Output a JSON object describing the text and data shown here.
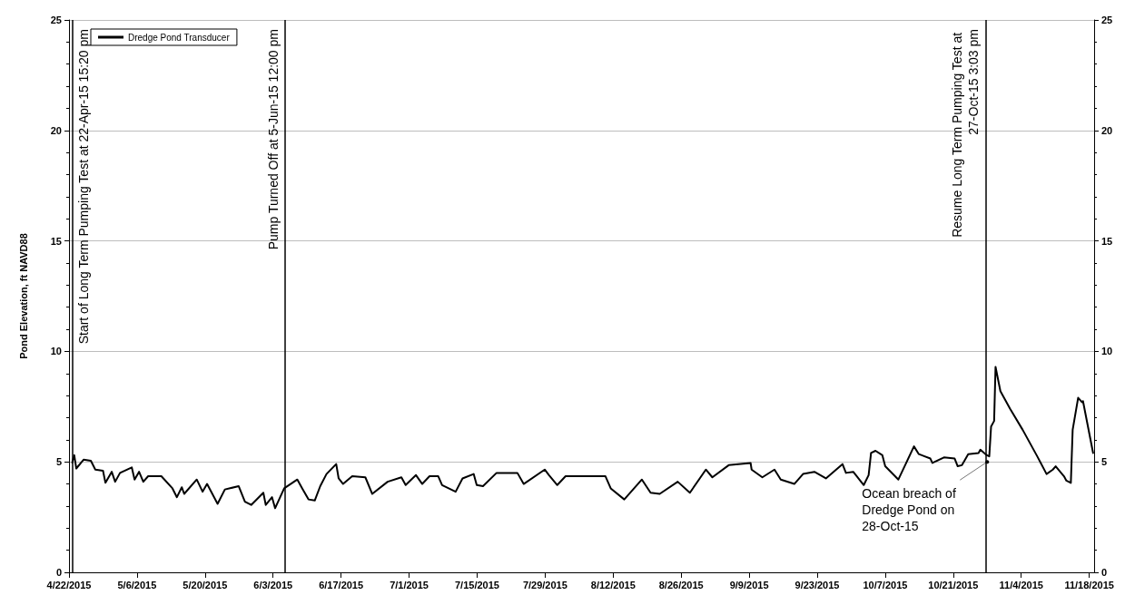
{
  "chart_data": {
    "type": "line",
    "ylabel": "Pond Elevation, ft NAVD88",
    "x": [
      "2015-04-22T16:00",
      "2015-04-23T02:00",
      "2015-04-23T12:00",
      "2015-04-25T00:00",
      "2015-04-26T12:00",
      "2015-04-27T10:00",
      "2015-04-29T00:00",
      "2015-04-29T12:00",
      "2015-04-30T19:00",
      "2015-05-01T12:00",
      "2015-05-02T12:00",
      "2015-05-04T22:00",
      "2015-05-05T12:00",
      "2015-05-06T10:00",
      "2015-05-07T07:00",
      "2015-05-08T07:00",
      "2015-05-11T00:00",
      "2015-05-13T07:00",
      "2015-05-14T05:00",
      "2015-05-15T05:00",
      "2015-05-15T17:00",
      "2015-05-18T07:00",
      "2015-05-19T12:00",
      "2015-05-20T10:00",
      "2015-05-22T14:00",
      "2015-05-24T02:00",
      "2015-05-26T22:00",
      "2015-05-28T05:00",
      "2015-05-29T12:00",
      "2015-06-01T00:00",
      "2015-06-01T12:00",
      "2015-06-02T19:00",
      "2015-06-03T10:00",
      "2015-06-05T07:00",
      "2015-06-08T00:00",
      "2015-06-09T00:00",
      "2015-06-10T07:00",
      "2015-06-11T14:00",
      "2015-06-12T17:00",
      "2015-06-14T00:00",
      "2015-06-16T00:00",
      "2015-06-16T12:00",
      "2015-06-17T10:00",
      "2015-06-19T07:00",
      "2015-06-22T00:00",
      "2015-06-23T10:00",
      "2015-06-26T14:00",
      "2015-06-29T10:00",
      "2015-06-30T07:00",
      "2015-07-02T10:00",
      "2015-07-03T17:00",
      "2015-07-05T05:00",
      "2015-07-07T00:00",
      "2015-07-07T19:00",
      "2015-07-10T14:00",
      "2015-07-12T00:00",
      "2015-07-14T07:00",
      "2015-07-14T22:00",
      "2015-07-16T05:00",
      "2015-07-19T00:00",
      "2015-07-23T07:00",
      "2015-07-24T14:00",
      "2015-07-28T22:00",
      "2015-07-29T19:00",
      "2015-07-31T12:00",
      "2015-08-02T05:00",
      "2015-08-10T10:00",
      "2015-08-11T12:00",
      "2015-08-14T07:00",
      "2015-08-17T22:00",
      "2015-08-19T17:00",
      "2015-08-21T14:00",
      "2015-08-25T07:00",
      "2015-08-27T19:00",
      "2015-08-31T02:00",
      "2015-09-01T10:00",
      "2015-09-04T19:00",
      "2015-09-09T07:00",
      "2015-09-09T12:00",
      "2015-09-11T17:00",
      "2015-09-14T05:00",
      "2015-09-15T12:00",
      "2015-09-18T07:00",
      "2015-09-20T02:00",
      "2015-09-22T10:00",
      "2015-09-24T19:00",
      "2015-09-28T05:00",
      "2015-09-28T22:00",
      "2015-09-30T10:00",
      "2015-10-02T14:00",
      "2015-10-03T14:00",
      "2015-10-04T02:00",
      "2015-10-05T00:00",
      "2015-10-06T10:00",
      "2015-10-07T00:00",
      "2015-10-08T19:00",
      "2015-10-09T17:00",
      "2015-10-11T05:00",
      "2015-10-12T22:00",
      "2015-10-13T22:00",
      "2015-10-16T07:00",
      "2015-10-16T17:00",
      "2015-10-19T02:00",
      "2015-10-21T07:00",
      "2015-10-21T22:00",
      "2015-10-22T19:00",
      "2015-10-24T02:00",
      "2015-10-26T05:00",
      "2015-10-26T14:00",
      "2015-10-27T22:00",
      "2015-10-28T10:00",
      "2015-10-28T19:00",
      "2015-10-29T10:00",
      "2015-10-29T17:00",
      "2015-10-30T17:00",
      "2015-11-01T17:00",
      "2015-11-04T07:00",
      "2015-11-07T07:00",
      "2015-11-09T05:00",
      "2015-11-10T12:00",
      "2015-11-11T02:00",
      "2015-11-12T19:00",
      "2015-11-13T07:00",
      "2015-11-14T05:00",
      "2015-11-14T14:00",
      "2015-11-15T17:00",
      "2015-11-16T12:00",
      "2015-11-16T17:00",
      "2015-11-18T19:00"
    ],
    "series": [
      {
        "name": "Dredge Pond Transducer",
        "color": "#000000",
        "values": [
          4.97,
          5.3,
          4.7,
          5.1,
          5.05,
          4.65,
          4.6,
          4.05,
          4.55,
          4.1,
          4.5,
          4.75,
          4.2,
          4.55,
          4.1,
          4.35,
          4.35,
          3.8,
          3.4,
          3.85,
          3.55,
          4.2,
          3.65,
          4.0,
          3.1,
          3.75,
          3.9,
          3.2,
          3.05,
          3.6,
          3.05,
          3.4,
          2.9,
          3.8,
          4.2,
          3.8,
          3.3,
          3.25,
          3.9,
          4.45,
          4.9,
          4.25,
          4.0,
          4.35,
          4.3,
          3.55,
          4.1,
          4.3,
          3.95,
          4.4,
          4.0,
          4.35,
          4.35,
          3.95,
          3.65,
          4.25,
          4.45,
          3.95,
          3.9,
          4.5,
          4.5,
          4.0,
          4.65,
          4.4,
          3.95,
          4.35,
          4.35,
          3.8,
          3.3,
          4.2,
          3.6,
          3.55,
          4.1,
          3.6,
          4.65,
          4.3,
          4.85,
          4.95,
          4.65,
          4.3,
          4.65,
          4.2,
          4.0,
          4.45,
          4.55,
          4.25,
          4.9,
          4.5,
          4.55,
          3.95,
          4.4,
          5.4,
          5.5,
          5.3,
          4.8,
          4.4,
          4.2,
          4.9,
          5.7,
          5.35,
          5.15,
          4.95,
          5.2,
          5.15,
          4.8,
          4.85,
          5.35,
          5.4,
          5.55,
          5.3,
          5.25,
          6.6,
          6.85,
          9.3,
          8.2,
          7.4,
          6.45,
          5.25,
          4.45,
          4.65,
          4.8,
          4.35,
          4.15,
          4.05,
          6.45,
          7.9,
          7.7,
          7.75,
          5.4
        ]
      }
    ],
    "xlim": [
      "2015-04-22",
      "2015-11-19"
    ],
    "xticks": [
      {
        "value": "2015-04-22",
        "label": "4/22/2015"
      },
      {
        "value": "2015-05-06",
        "label": "5/6/2015"
      },
      {
        "value": "2015-05-20",
        "label": "5/20/2015"
      },
      {
        "value": "2015-06-03",
        "label": "6/3/2015"
      },
      {
        "value": "2015-06-17",
        "label": "6/17/2015"
      },
      {
        "value": "2015-07-01",
        "label": "7/1/2015"
      },
      {
        "value": "2015-07-15",
        "label": "7/15/2015"
      },
      {
        "value": "2015-07-29",
        "label": "7/29/2015"
      },
      {
        "value": "2015-08-12",
        "label": "8/12/2015"
      },
      {
        "value": "2015-08-26",
        "label": "8/26/2015"
      },
      {
        "value": "2015-09-09",
        "label": "9/9/2015"
      },
      {
        "value": "2015-09-23",
        "label": "9/23/2015"
      },
      {
        "value": "2015-10-07",
        "label": "10/7/2015"
      },
      {
        "value": "2015-10-21",
        "label": "10/21/2015"
      },
      {
        "value": "2015-11-04",
        "label": "11/4/2015"
      },
      {
        "value": "2015-11-18",
        "label": "11/18/2015"
      }
    ],
    "ylim": [
      0,
      25
    ],
    "yticks": [
      0,
      5,
      10,
      15,
      20,
      25
    ],
    "y2lim": [
      0,
      25
    ],
    "y2ticks": [
      0,
      5,
      10,
      15,
      20,
      25
    ],
    "ref_lines": [
      {
        "axis": "x",
        "value": "2015-04-22T15:20",
        "label": "Start of Long Term Pumping Test at 22-Apr-15 15:20 pm"
      },
      {
        "axis": "x",
        "value": "2015-06-05T12:00",
        "label": "Pump Turned Off at 5-Jun-15 12:00 pm"
      },
      {
        "axis": "x",
        "value": "2015-10-27T15:03",
        "label": "Resume Long Term Pumping Test at 27-Oct-15 3:03 pm"
      }
    ],
    "annotations": [
      {
        "text": "Ocean breach of Dredge Pond on 28-Oct-15",
        "x": "2015-10-28",
        "y": 5
      }
    ],
    "grid": "y",
    "legend": "top left",
    "marker": "none",
    "line_style": "solid"
  }
}
